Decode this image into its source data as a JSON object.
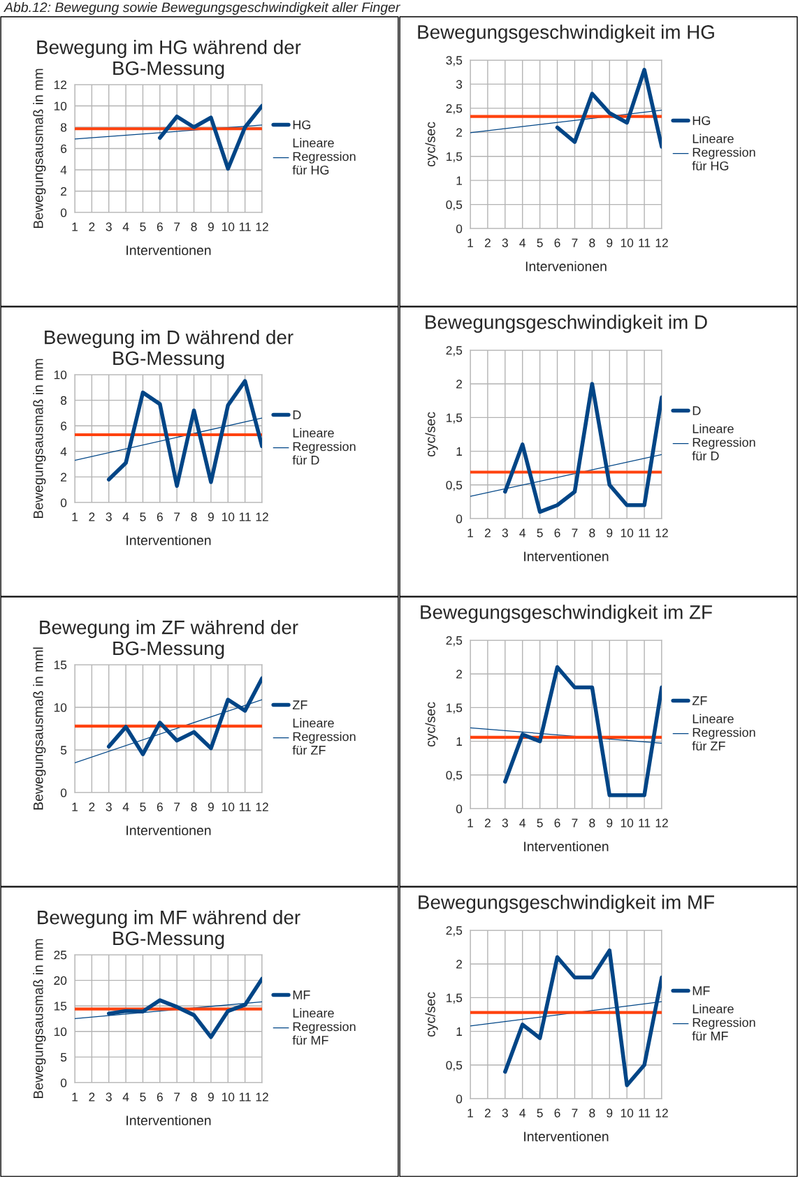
{
  "chart_data": [
    {
      "type": "line",
      "title": "Bewegung im HG während der BG-Messung",
      "xlabel": "Interventionen",
      "ylabel": "Bewegungsausmaß in mm",
      "annotations": [
        "Abb.12: Bewegung sowie Bewegungsgeschwindigkeit aller Finger"
      ],
      "xlim": [
        1,
        12
      ],
      "xticks": [
        1,
        2,
        3,
        4,
        5,
        6,
        7,
        8,
        9,
        10,
        11,
        12
      ],
      "ylim": [
        0,
        12
      ],
      "yticks": [
        0,
        2,
        4,
        6,
        8,
        10,
        12
      ],
      "grid": true,
      "legend": "right",
      "series": [
        {
          "name": "HG",
          "color": "#004586",
          "x": [
            6,
            7,
            8,
            9,
            10,
            11,
            12
          ],
          "values": [
            7.0,
            9.0,
            8.0,
            8.9,
            4.1,
            8.0,
            10.0
          ]
        },
        {
          "name": "Lineare Regression für HG",
          "type": "line",
          "color": "#004586",
          "x": [
            1,
            12
          ],
          "values": [
            6.9,
            8.2
          ]
        }
      ],
      "ref_lines": [
        {
          "axis": "y",
          "value": 7.85,
          "color": "#ff420e"
        }
      ]
    },
    {
      "type": "line",
      "title": "Bewegungsgeschwindigkeit im HG",
      "xlabel": "Intervenionen",
      "ylabel": "cyc/sec",
      "xlim": [
        1,
        12
      ],
      "xticks": [
        1,
        2,
        3,
        4,
        5,
        6,
        7,
        8,
        9,
        10,
        11,
        12
      ],
      "ylim": [
        0,
        3.5
      ],
      "yticks": [
        0,
        {
          "value": 0.5,
          "label": "0,5"
        },
        1,
        {
          "value": 1.5,
          "label": "1,5"
        },
        2,
        {
          "value": 2.5,
          "label": "2,5"
        },
        3,
        {
          "value": 3.5,
          "label": "3,5"
        }
      ],
      "grid": true,
      "legend": "right",
      "series": [
        {
          "name": "HG",
          "color": "#004586",
          "x": [
            6,
            7,
            8,
            9,
            10,
            11,
            12
          ],
          "values": [
            2.1,
            1.8,
            2.8,
            2.4,
            2.2,
            3.3,
            1.7
          ]
        },
        {
          "name": "Lineare Regression für HG",
          "type": "line",
          "color": "#004586",
          "x": [
            1,
            12
          ],
          "values": [
            1.99,
            2.46
          ]
        }
      ],
      "ref_lines": [
        {
          "axis": "y",
          "value": 2.33,
          "color": "#ff420e"
        }
      ]
    },
    {
      "type": "line",
      "title": "Bewegung im D während der BG-Messung",
      "xlabel": "Interventionen",
      "ylabel": "Bewegungsausmaß in mm",
      "xlim": [
        1,
        12
      ],
      "xticks": [
        1,
        2,
        3,
        4,
        5,
        6,
        7,
        8,
        9,
        10,
        11,
        12
      ],
      "ylim": [
        0,
        10
      ],
      "yticks": [
        0,
        2,
        4,
        6,
        8,
        10
      ],
      "grid": true,
      "legend": "right",
      "series": [
        {
          "name": "D",
          "color": "#004586",
          "x": [
            3,
            4,
            5,
            6,
            7,
            8,
            9,
            10,
            11,
            12
          ],
          "values": [
            1.8,
            3.1,
            8.6,
            7.7,
            1.3,
            7.2,
            1.6,
            7.6,
            9.5,
            4.4
          ]
        },
        {
          "name": "Lineare Regression für D",
          "type": "line",
          "color": "#004586",
          "x": [
            1,
            12
          ],
          "values": [
            3.3,
            6.6
          ]
        }
      ],
      "ref_lines": [
        {
          "axis": "y",
          "value": 5.3,
          "color": "#ff420e"
        }
      ]
    },
    {
      "type": "line",
      "title": "Bewegungsgeschwindigkeit im D",
      "xlabel": "Interventionen",
      "ylabel": "cyc/sec",
      "xlim": [
        1,
        12
      ],
      "xticks": [
        1,
        2,
        3,
        4,
        5,
        6,
        7,
        8,
        9,
        10,
        11,
        12
      ],
      "ylim": [
        0,
        2.5
      ],
      "yticks": [
        0,
        {
          "value": 0.5,
          "label": "0,5"
        },
        1,
        {
          "value": 1.5,
          "label": "1,5"
        },
        2,
        {
          "value": 2.5,
          "label": "2,5"
        }
      ],
      "grid": true,
      "legend": "right",
      "series": [
        {
          "name": "D",
          "color": "#004586",
          "x": [
            3,
            4,
            5,
            6,
            7,
            8,
            9,
            10,
            11,
            12
          ],
          "values": [
            0.4,
            1.1,
            0.1,
            0.2,
            0.4,
            2.0,
            0.5,
            0.2,
            0.2,
            1.8
          ]
        },
        {
          "name": "Lineare Regression für D",
          "type": "line",
          "color": "#004586",
          "x": [
            1,
            12
          ],
          "values": [
            0.33,
            0.95
          ]
        }
      ],
      "ref_lines": [
        {
          "axis": "y",
          "value": 0.69,
          "color": "#ff420e"
        }
      ]
    },
    {
      "type": "line",
      "title": "Bewegung im ZF während der BG-Messung",
      "xlabel": "Interventionen",
      "ylabel": "Bewegungsausmaß in mml",
      "xlim": [
        1,
        12
      ],
      "xticks": [
        1,
        2,
        3,
        4,
        5,
        6,
        7,
        8,
        9,
        10,
        11,
        12
      ],
      "ylim": [
        0,
        15
      ],
      "yticks": [
        0,
        5,
        10,
        15
      ],
      "grid": true,
      "legend": "right",
      "series": [
        {
          "name": "ZF",
          "color": "#004586",
          "x": [
            3,
            4,
            5,
            6,
            7,
            8,
            9,
            10,
            11,
            12
          ],
          "values": [
            5.4,
            7.7,
            4.5,
            8.2,
            6.1,
            7.1,
            5.2,
            10.9,
            9.6,
            13.4
          ]
        },
        {
          "name": "Lineare Regression für ZF",
          "type": "line",
          "color": "#004586",
          "x": [
            1,
            12
          ],
          "values": [
            3.5,
            10.9
          ]
        }
      ],
      "ref_lines": [
        {
          "axis": "y",
          "value": 7.8,
          "color": "#ff420e"
        }
      ]
    },
    {
      "type": "line",
      "title": "Bewegungsgeschwindigkeit im ZF",
      "xlabel": "Interventionen",
      "ylabel": "cyc/sec",
      "xlim": [
        1,
        12
      ],
      "xticks": [
        1,
        2,
        3,
        4,
        5,
        6,
        7,
        8,
        9,
        10,
        11,
        12
      ],
      "ylim": [
        0,
        2.5
      ],
      "yticks": [
        0,
        {
          "value": 0.5,
          "label": "0,5"
        },
        1,
        {
          "value": 1.5,
          "label": "1,5"
        },
        2,
        {
          "value": 2.5,
          "label": "2,5"
        }
      ],
      "grid": true,
      "legend": "right",
      "series": [
        {
          "name": "ZF",
          "color": "#004586",
          "x": [
            3,
            4,
            5,
            6,
            7,
            8,
            9,
            10,
            11,
            12
          ],
          "values": [
            0.4,
            1.1,
            1.0,
            2.1,
            1.8,
            1.8,
            0.2,
            0.2,
            0.2,
            1.8
          ]
        },
        {
          "name": "Lineare Regression für ZF",
          "type": "line",
          "color": "#004586",
          "x": [
            1,
            12
          ],
          "values": [
            1.2,
            0.97
          ]
        }
      ],
      "ref_lines": [
        {
          "axis": "y",
          "value": 1.06,
          "color": "#ff420e"
        }
      ]
    },
    {
      "type": "line",
      "title": "Bewegung im MF während der BG-Messung",
      "xlabel": "Interventionen",
      "ylabel": "Bewegungsausmaß in mm",
      "xlim": [
        1,
        12
      ],
      "xticks": [
        1,
        2,
        3,
        4,
        5,
        6,
        7,
        8,
        9,
        10,
        11,
        12
      ],
      "ylim": [
        0,
        25
      ],
      "yticks": [
        0,
        5,
        10,
        15,
        20,
        25
      ],
      "grid": true,
      "legend": "right",
      "series": [
        {
          "name": "MF",
          "color": "#004586",
          "x": [
            3,
            4,
            5,
            6,
            7,
            8,
            9,
            10,
            11,
            12
          ],
          "values": [
            13.5,
            14.0,
            13.9,
            16.1,
            14.8,
            13.2,
            8.9,
            14.0,
            15.2,
            20.3
          ]
        },
        {
          "name": "Lineare Regression für MF",
          "type": "line",
          "color": "#004586",
          "x": [
            1,
            12
          ],
          "values": [
            12.5,
            15.8
          ]
        }
      ],
      "ref_lines": [
        {
          "axis": "y",
          "value": 14.4,
          "color": "#ff420e"
        }
      ]
    },
    {
      "type": "line",
      "title": "Bewegungsgeschwindigkeit im MF",
      "xlabel": "Interventionen",
      "ylabel": "cyc/sec",
      "xlim": [
        1,
        12
      ],
      "xticks": [
        1,
        2,
        3,
        4,
        5,
        6,
        7,
        8,
        9,
        10,
        11,
        12
      ],
      "ylim": [
        0,
        2.5
      ],
      "yticks": [
        0,
        {
          "value": 0.5,
          "label": "0,5"
        },
        1,
        {
          "value": 1.5,
          "label": "1,5"
        },
        2,
        {
          "value": 2.5,
          "label": "2,5"
        }
      ],
      "grid": true,
      "legend": "right",
      "series": [
        {
          "name": "MF",
          "color": "#004586",
          "x": [
            3,
            4,
            5,
            6,
            7,
            8,
            9,
            10,
            11,
            12
          ],
          "values": [
            0.4,
            1.1,
            0.9,
            2.1,
            1.8,
            1.8,
            2.2,
            0.2,
            0.5,
            1.8
          ]
        },
        {
          "name": "Lineare Regression für MF",
          "type": "line",
          "color": "#004586",
          "x": [
            1,
            12
          ],
          "values": [
            1.08,
            1.44
          ]
        }
      ],
      "ref_lines": [
        {
          "axis": "y",
          "value": 1.28,
          "color": "#ff420e"
        }
      ]
    }
  ]
}
